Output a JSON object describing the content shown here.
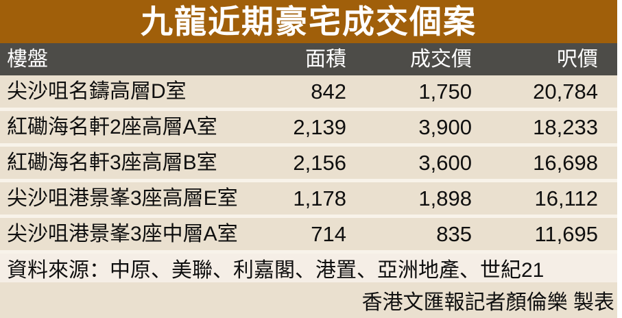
{
  "chart_data": {
    "type": "table",
    "title": "九龍近期豪宅成交個案",
    "columns": [
      "樓盤",
      "面積",
      "成交價",
      "呎價"
    ],
    "rows": [
      [
        "尖沙咀名鑄高層D室",
        "842",
        "1,750",
        "20,784"
      ],
      [
        "紅磡海名軒2座高層A室",
        "2,139",
        "3,900",
        "18,233"
      ],
      [
        "紅磡海名軒3座高層B室",
        "2,156",
        "3,600",
        "16,698"
      ],
      [
        "尖沙咀港景峯3座高層E室",
        "1,178",
        "1,898",
        "16,112"
      ],
      [
        "尖沙咀港景峯3座中層A室",
        "714",
        "835",
        "11,695"
      ]
    ],
    "source": "資料來源：中原、美聯、利嘉閣、港置、亞洲地產、世紀21",
    "credit": "香港文匯報記者顏倫樂 製表"
  },
  "colors": {
    "title_bg": "#a05f0a",
    "header_bg": "#4d4c48",
    "row_bg": "#eae0cf",
    "source_bg": "#f5eee6",
    "gap_bg": "#f8f3ea",
    "title_text": "#ffffff",
    "body_text": "#0f0f0f"
  }
}
